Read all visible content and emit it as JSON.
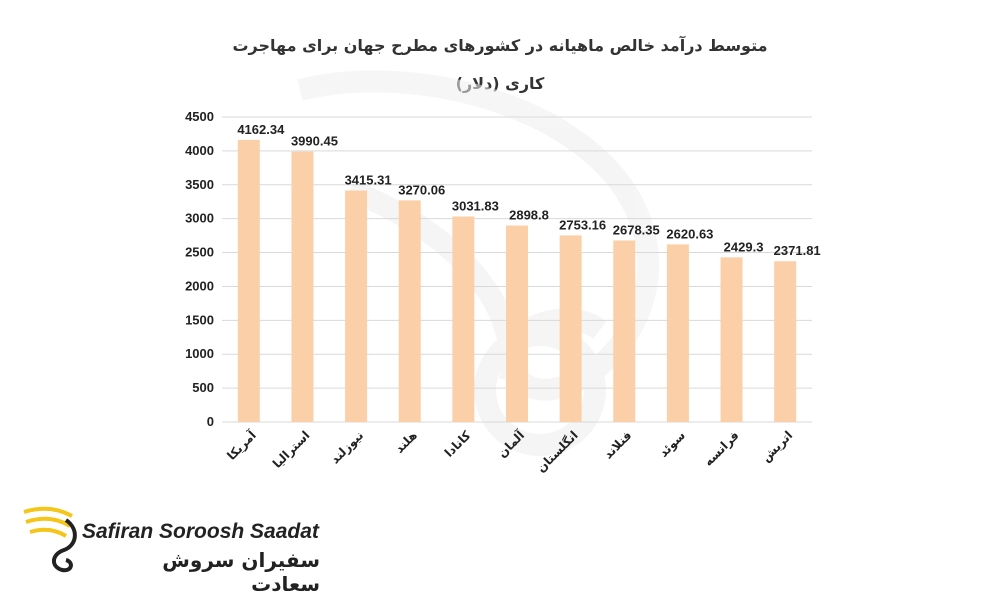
{
  "chart_data": {
    "type": "bar",
    "title_line1": "متوسط درآمد خالص ماهیانه در کشورهای مطرح جهان برای مهاجرت",
    "title_line2": "کاری (دلار)",
    "categories": [
      "آمریکا",
      "استرالیا",
      "نیوزلند",
      "هلند",
      "کانادا",
      "آلمان",
      "انگلستان",
      "فنلاند",
      "سوئد",
      "فرانسه",
      "اتریش"
    ],
    "values": [
      4162.34,
      3990.45,
      3415.31,
      3270.06,
      3031.83,
      2898.8,
      2753.16,
      2678.35,
      2620.63,
      2429.3,
      2371.81
    ],
    "value_labels": [
      "4162.34",
      "3990.45",
      "3415.31",
      "3270.06",
      "3031.83",
      "2898.8",
      "2753.16",
      "2678.35",
      "2620.63",
      "2429.3",
      "2371.81"
    ],
    "ylim": [
      0,
      4500
    ],
    "yticks": [
      "0",
      "500",
      "1000",
      "1500",
      "2000",
      "2500",
      "3000",
      "3500",
      "4000",
      "4500"
    ],
    "grid": true,
    "bar_color": "#fbcfa8",
    "grid_color": "#d9d9d9"
  },
  "logo": {
    "text_en": "Safiran Soroosh Saadat",
    "text_fa": "سفیران سروش سعادت",
    "accent_color": "#f5c518",
    "icon": "swan-logo-icon"
  }
}
